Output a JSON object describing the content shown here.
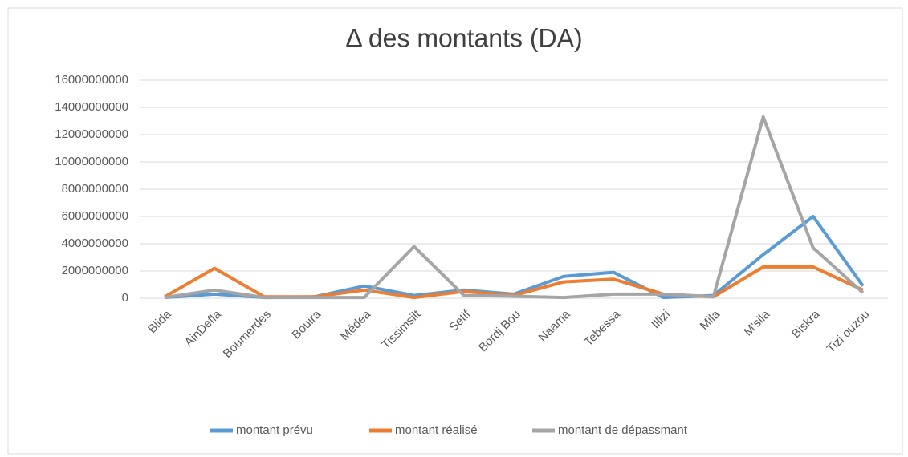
{
  "chart_data": {
    "type": "line",
    "title": "Δ des montants (DA)",
    "categories": [
      "Blida",
      "AinDefla",
      "Boumerdes",
      "Bouira",
      "Médea",
      "Tissimsilt",
      "Setif",
      "Bordj Bou",
      "Naama",
      "Tebessa",
      "Illizi",
      "Mila",
      "M'sila",
      "Biskra",
      "Tizi ouzou"
    ],
    "series": [
      {
        "name": "montant prévu",
        "color": "#5b9bd5",
        "values": [
          50000000,
          300000000,
          50000000,
          100000000,
          900000000,
          200000000,
          600000000,
          300000000,
          1600000000,
          1900000000,
          50000000,
          200000000,
          3200000000,
          6000000000,
          900000000
        ]
      },
      {
        "name": "montant réalisé",
        "color": "#ed7d31",
        "values": [
          100000000,
          2200000000,
          100000000,
          100000000,
          600000000,
          50000000,
          500000000,
          200000000,
          1200000000,
          1400000000,
          300000000,
          100000000,
          2300000000,
          2300000000,
          600000000
        ]
      },
      {
        "name": "montant de dépassmant",
        "color": "#a5a5a5",
        "values": [
          50000000,
          600000000,
          50000000,
          50000000,
          50000000,
          3800000000,
          200000000,
          150000000,
          50000000,
          300000000,
          300000000,
          100000000,
          13300000000,
          3700000000,
          400000000
        ]
      }
    ],
    "ylim": [
      0,
      16000000000
    ],
    "yticks": [
      0,
      2000000000,
      4000000000,
      6000000000,
      8000000000,
      10000000000,
      12000000000,
      14000000000,
      16000000000
    ],
    "grid": true,
    "legend": "bottom"
  }
}
